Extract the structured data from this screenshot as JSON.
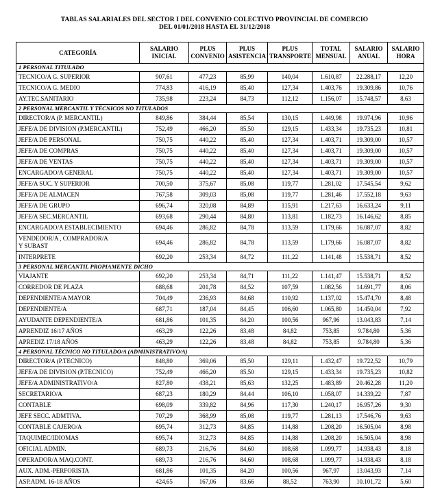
{
  "title": {
    "line1": "TABLAS SALARIALES DEL SECTOR I DEL CONVENIO COLECTIVO PROVINCIAL DE COMERCIO",
    "line2": "DEL 01/01/2018 HASTA EL 31/12/2018"
  },
  "table": {
    "columns": [
      "CATEGORÍA",
      "SALARIO\nINICIAL",
      "PLUS\nCONVENIO",
      "PLUS\nASISTENCIA",
      "PLUS\nTRANSPORTE",
      "TOTAL\nMENSUAL",
      "SALARIO\nANUAL",
      "SALARIO\nHORA"
    ],
    "sections": [
      {
        "name": "1 PERSONAL TITULADO",
        "rows": [
          {
            "category": "TECNICO/A G. SUPERIOR",
            "values": [
              "907,61",
              "477,23",
              "85,99",
              "140,04",
              "1.610,87",
              "22.288,17",
              "12,20"
            ]
          },
          {
            "category": "TECNICO/A G. MEDIO",
            "values": [
              "774,83",
              "416,19",
              "85,40",
              "127,34",
              "1.403,76",
              "19.309,86",
              "10,76"
            ]
          },
          {
            "category": "AY.TEC.SANITARIO",
            "values": [
              "735,98",
              "223,24",
              "84,73",
              "112,12",
              "1.156,07",
              "15.748,57",
              "8,63"
            ]
          }
        ]
      },
      {
        "name": "2 PERSONAL MERCANTIL Y TÉCNICOS NO TITULADOS",
        "rows": [
          {
            "category": "DIRECTOR/A (P. MERCANTIL)",
            "values": [
              "849,86",
              "384,44",
              "85,54",
              "130,15",
              "1.449,98",
              "19.974,96",
              "10,96"
            ]
          },
          {
            "category": "JEFE/A DE DIVISION (P.MERCANTIL)",
            "values": [
              "752,49",
              "466,20",
              "85,50",
              "129,15",
              "1.433,34",
              "19.735,23",
              "10,81"
            ]
          },
          {
            "category": "JEFE/A DE PERSONAL",
            "values": [
              "750,75",
              "440,22",
              "85,40",
              "127,34",
              "1.403,71",
              "19.309,00",
              "10,57"
            ]
          },
          {
            "category": "JEFE/A DE COMPRAS",
            "values": [
              "750,75",
              "440,22",
              "85,40",
              "127,34",
              "1.403,71",
              "19.309,00",
              "10,57"
            ]
          },
          {
            "category": "JEFE/A DE VENTAS",
            "values": [
              "750,75",
              "440,22",
              "85,40",
              "127,34",
              "1.403,71",
              "19.309,00",
              "10,57"
            ]
          },
          {
            "category": "ENCARGADO/A GENERAL",
            "values": [
              "750,75",
              "440,22",
              "85,40",
              "127,34",
              "1.403,71",
              "19.309,00",
              "10,57"
            ]
          },
          {
            "category": "JEFE/A SUC. Y SUPERIOR",
            "values": [
              "700,50",
              "375,67",
              "85,08",
              "119,77",
              "1.281,02",
              "17.545,54",
              "9,62"
            ]
          },
          {
            "category": "JEFE/A DE ALMACEN",
            "values": [
              "767,58",
              "309,03",
              "85,08",
              "119,77",
              "1.281,46",
              "17.552,18",
              "9,63"
            ]
          },
          {
            "category": "JEFE/A DE GRUPO",
            "values": [
              "696,74",
              "320,08",
              "84,89",
              "115,91",
              "1.217,63",
              "16.633,24",
              "9,11"
            ]
          },
          {
            "category": "JEFE/A SEC.MERCANTIL",
            "values": [
              "693,68",
              "290,44",
              "84,80",
              "113,81",
              "1.182,73",
              "16.146,62",
              "8,85"
            ]
          },
          {
            "category": "ENCARGADO/A ESTABLECIMIENTO",
            "values": [
              "694,46",
              "286,82",
              "84,78",
              "113,59",
              "1.179,66",
              "16.087,07",
              "8,82"
            ]
          },
          {
            "category": "VENDEDOR/A , COMPRADOR/A\nY SUBAST",
            "values": [
              "694,46",
              "286,82",
              "84,78",
              "113,59",
              "1.179,66",
              "16.087,07",
              "8,82"
            ]
          },
          {
            "category": "INTERPRETE",
            "values": [
              "692,20",
              "253,34",
              "84,72",
              "111,22",
              "1.141,48",
              "15.538,71",
              "8,52"
            ]
          }
        ]
      },
      {
        "name": "3 PERSONAL MERCANTIL PROPIAMENTE DICHO",
        "rows": [
          {
            "category": "VIAJANTE",
            "values": [
              "692,20",
              "253,34",
              "84,71",
              "111,22",
              "1.141,47",
              "15.538,71",
              "8,52"
            ]
          },
          {
            "category": "CORREDOR DE PLAZA",
            "values": [
              "688,68",
              "201,78",
              "84,52",
              "107,59",
              "1.082,56",
              "14.691,77",
              "8,06"
            ]
          },
          {
            "category": "DEPENDIENTE/A MAYOR",
            "values": [
              "704,49",
              "236,93",
              "84,68",
              "110,92",
              "1.137,02",
              "15.474,70",
              "8,48"
            ]
          },
          {
            "category": "DEPENDIENTE/A",
            "values": [
              "687,71",
              "187,04",
              "84,45",
              "106,60",
              "1.065,80",
              "14.450,04",
              "7,92"
            ]
          },
          {
            "category": "AYUDANTE DEPENDIENTE/A",
            "values": [
              "681,86",
              "101,35",
              "84,20",
              "100,56",
              "967,96",
              "13.043,83",
              "7,14"
            ]
          },
          {
            "category": "APRENDIZ 16/17 AÑOS",
            "values": [
              "463,29",
              "122,26",
              "83,48",
              "84,82",
              "753,85",
              "9.784,80",
              "5,36"
            ]
          },
          {
            "category": "APREDIZ 17/18 AÑOS",
            "values": [
              "463,29",
              "122,26",
              "83,48",
              "84,82",
              "753,85",
              "9.784,80",
              "5,36"
            ]
          }
        ]
      },
      {
        "name": "4 PERSONAL TÉCNICO NO TITULADO/A (ADMINISTRATIVO/A)",
        "rows": [
          {
            "category": "DIRECTOR/A (P.TECNICO)",
            "values": [
              "848,80",
              "369,06",
              "85,50",
              "129,11",
              "1.432,47",
              "19.722,52",
              "10,79"
            ]
          },
          {
            "category": "JEFE/A DE DIVISION (P.TECNICO)",
            "values": [
              "752,49",
              "466,20",
              "85,50",
              "129,15",
              "1.433,34",
              "19.735,23",
              "10,82"
            ]
          },
          {
            "category": "JEFE/A ADMINISTRATIVO/A",
            "values": [
              "827,80",
              "438,21",
              "85,63",
              "132,25",
              "1.483,89",
              "20.462,28",
              "11,20"
            ]
          },
          {
            "category": "SECRETARIO/A",
            "values": [
              "687,23",
              "180,29",
              "84,44",
              "106,10",
              "1.058,07",
              "14.339,22",
              "7,87"
            ]
          },
          {
            "category": "CONTABLE",
            "values": [
              "698,09",
              "339,82",
              "84,96",
              "117,30",
              "1.240,17",
              "16.957,26",
              "9,30"
            ]
          },
          {
            "category": "JEFE SECC. ADMTIVA.",
            "values": [
              "707,29",
              "368,99",
              "85,08",
              "119,77",
              "1.281,13",
              "17.546,76",
              "9,63"
            ]
          },
          {
            "category": "CONTABLE CAJERO/A",
            "values": [
              "695,74",
              "312,73",
              "84,85",
              "114,88",
              "1.208,20",
              "16.505,04",
              "8,98"
            ]
          },
          {
            "category": "TAQUIMEC/IDIOMAS",
            "values": [
              "695,74",
              "312,73",
              "84,85",
              "114,88",
              "1.208,20",
              "16.505,04",
              "8,98"
            ]
          },
          {
            "category": "OFICIAL ADMIN.",
            "values": [
              "689,73",
              "216,76",
              "84,60",
              "108,68",
              "1.099,77",
              "14.938,43",
              "8,18"
            ]
          },
          {
            "category": "OPERADOR/A MAQ.CONT.",
            "values": [
              "689,73",
              "216,76",
              "84,60",
              "108,68",
              "1.099,77",
              "14.938,43",
              "8,18"
            ]
          },
          {
            "category": "AUX. ADM.-PERFORISTA",
            "values": [
              "681,86",
              "101,35",
              "84,20",
              "100,56",
              "967,97",
              "13.043,93",
              "7,14"
            ]
          },
          {
            "category": "ASP.ADM. 16-18 AÑOS",
            "values": [
              "424,65",
              "167,06",
              "83,66",
              "88,52",
              "763,90",
              "10.101,72",
              "5,60"
            ]
          }
        ]
      }
    ]
  }
}
